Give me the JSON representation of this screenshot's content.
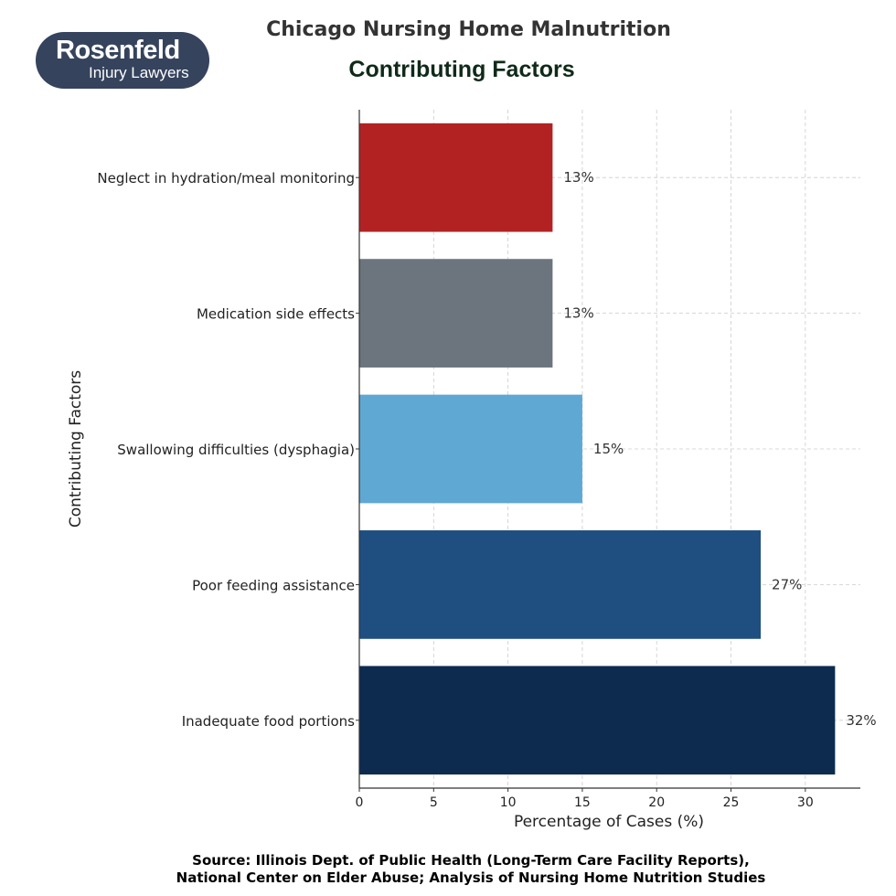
{
  "logo": {
    "line1": "Rosenfeld",
    "line2": "Injury Lawyers"
  },
  "title": "Chicago Nursing Home Malnutrition",
  "source": {
    "line1": "Source: Illinois Dept. of Public Health (Long-Term Care Facility Reports),",
    "line2": "National Center on Elder Abuse; Analysis of Nursing Home Nutrition Studies"
  },
  "chart_data": {
    "type": "bar",
    "orientation": "horizontal",
    "title": "Contributing Factors",
    "xlabel": "Percentage of Cases (%)",
    "ylabel": "Contributing Factors",
    "categories": [
      "Neglect in hydration/meal monitoring",
      "Medication side effects",
      "Swallowing difficulties (dysphagia)",
      "Poor feeding assistance",
      "Inadequate food portions"
    ],
    "values": [
      13,
      13,
      15,
      27,
      32
    ],
    "data_labels": [
      "13%",
      "13%",
      "15%",
      "27%",
      "32%"
    ],
    "colors": [
      "#b22222",
      "#6c757d",
      "#5fa8d3",
      "#1f4e80",
      "#0d2b4e"
    ],
    "xlim": [
      0,
      33.7
    ],
    "xticks": [
      0,
      5,
      10,
      15,
      20,
      25,
      30
    ],
    "grid": true
  }
}
